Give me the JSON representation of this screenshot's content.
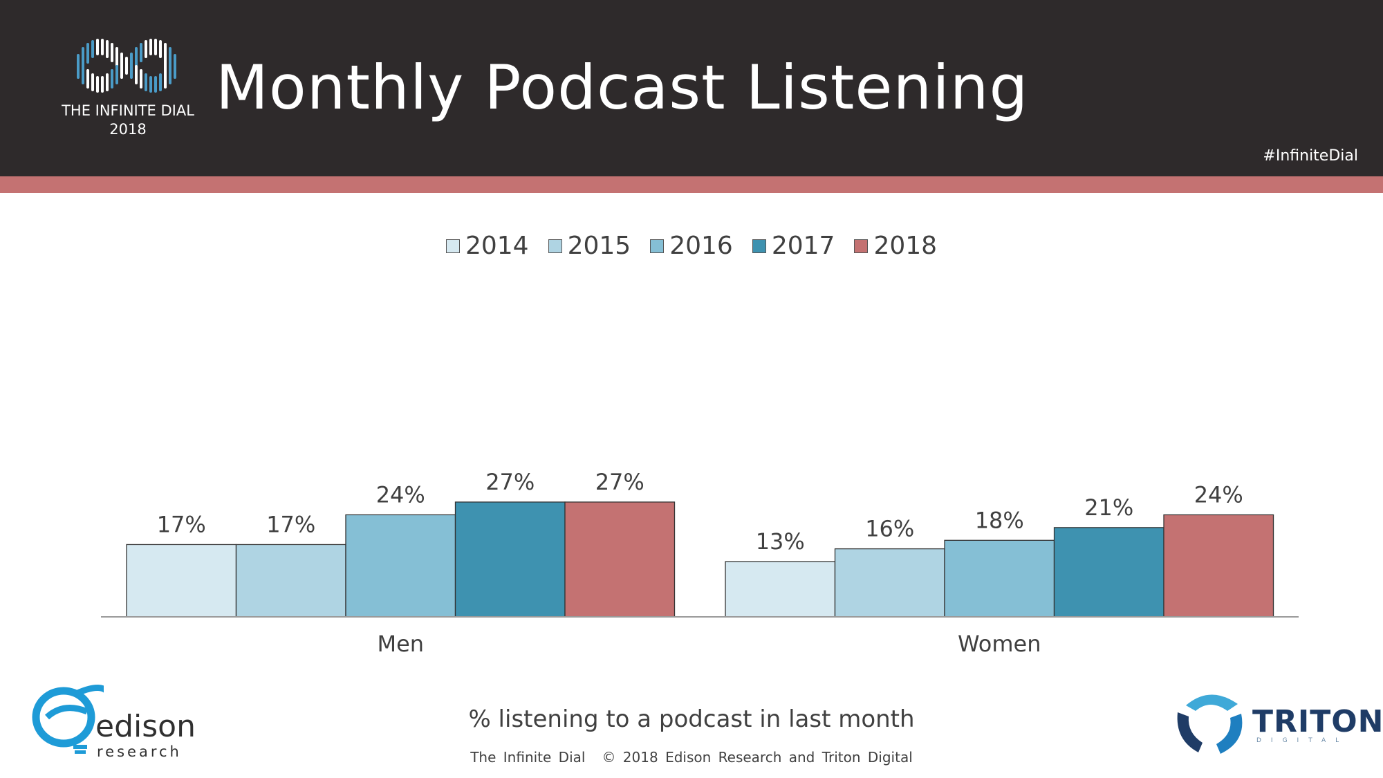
{
  "header": {
    "title": "Monthly Podcast Listening",
    "logo_line1": "THE INFINITE DIAL",
    "logo_line2": "2018",
    "hashtag": "#InfiniteDial"
  },
  "footer": {
    "caption": "% listening to a podcast in last month",
    "credit_left": "The Infinite Dial",
    "credit_right": "© 2018 Edison Research and Triton Digital",
    "edison_word": "edison",
    "edison_sub": "research",
    "triton_word": "TRITON",
    "triton_sub": "DIGITAL"
  },
  "colors": {
    "header_bg": "#2e2a2b",
    "accent": "#c47272",
    "s2014": "#d6e9f1",
    "s2015": "#afd4e3",
    "s2016": "#85bfd5",
    "s2017": "#3e92b0",
    "s2018": "#c47272"
  },
  "chart_data": {
    "type": "bar",
    "title": "Monthly Podcast Listening",
    "xlabel": "",
    "ylabel": "% listening to a podcast in last month",
    "categories": [
      "Men",
      "Women"
    ],
    "ylim": [
      0,
      100
    ],
    "legend_position": "top-center",
    "series": [
      {
        "name": "2014",
        "values": [
          17,
          13
        ],
        "labels": [
          "17%",
          "13%"
        ],
        "color": "#d6e9f1"
      },
      {
        "name": "2015",
        "values": [
          17,
          16
        ],
        "labels": [
          "17%",
          "16%"
        ],
        "color": "#afd4e3"
      },
      {
        "name": "2016",
        "values": [
          24,
          18
        ],
        "labels": [
          "24%",
          "18%"
        ],
        "color": "#85bfd5"
      },
      {
        "name": "2017",
        "values": [
          27,
          21
        ],
        "labels": [
          "27%",
          "21%"
        ],
        "color": "#3e92b0"
      },
      {
        "name": "2018",
        "values": [
          27,
          24
        ],
        "labels": [
          "27%",
          "24%"
        ],
        "color": "#c47272"
      }
    ]
  }
}
